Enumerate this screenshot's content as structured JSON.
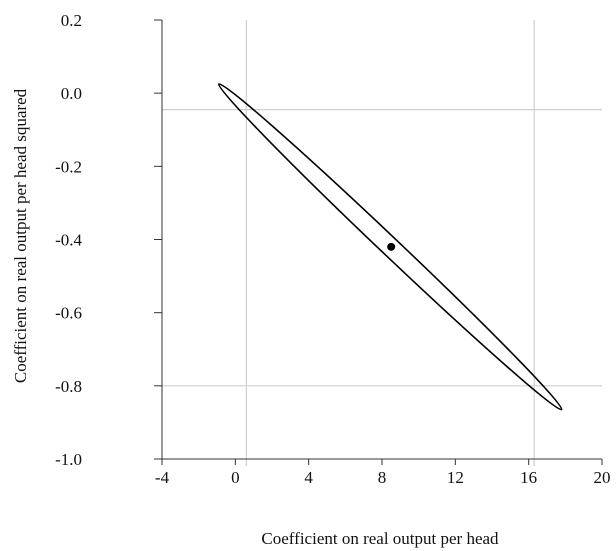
{
  "chart_data": {
    "type": "scatter",
    "title": "",
    "xlabel": "Coefficient on real output per head",
    "ylabel": "Coefficient on real output per head squared",
    "xlim": [
      -4,
      20
    ],
    "ylim": [
      -1.0,
      0.2
    ],
    "x_ticks": [
      -4,
      0,
      4,
      8,
      12,
      16,
      20
    ],
    "x_tick_labels": [
      "-4",
      "0",
      "4",
      "8",
      "12",
      "16",
      "20"
    ],
    "y_ticks": [
      0.2,
      0.0,
      -0.2,
      -0.4,
      -0.6,
      -0.8,
      -1.0
    ],
    "y_tick_labels": [
      "0.2",
      "0.0",
      "-0.2",
      "-0.4",
      "-0.6",
      "-0.8",
      "-1.0"
    ],
    "point_estimate": {
      "x": 8.5,
      "y": -0.42
    },
    "confidence_ellipse": {
      "endpoint_a": {
        "x": -0.9,
        "y": 0.025
      },
      "endpoint_b": {
        "x": 17.8,
        "y": -0.865
      },
      "thickness_mid": 0.025
    },
    "reference_lines": {
      "vertical_x": [
        0.6,
        16.3
      ],
      "horizontal_y": [
        -0.045,
        -0.8
      ]
    },
    "grid": false,
    "legend": "none"
  }
}
